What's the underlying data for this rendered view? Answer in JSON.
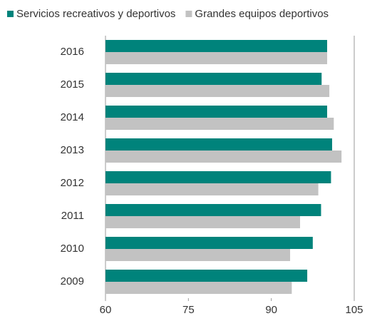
{
  "chart_data": {
    "type": "barh",
    "categories": [
      "2016",
      "2015",
      "2014",
      "2013",
      "2012",
      "2011",
      "2010",
      "2009"
    ],
    "series": [
      {
        "name": "Servicios recreativos y deportivos",
        "color": "#00837b",
        "values": [
          100.1,
          99.1,
          100.1,
          101,
          100.8,
          99,
          97.5,
          96.5
        ]
      },
      {
        "name": "Grandes equipos deportivos",
        "color": "#c2c2c2",
        "values": [
          100.1,
          100.5,
          101.3,
          102.7,
          98.5,
          95.2,
          93.4,
          93.7
        ]
      }
    ],
    "xlim": [
      60,
      105
    ],
    "xticks": [
      60,
      75,
      90,
      105
    ],
    "grid": false,
    "legend": "top"
  }
}
